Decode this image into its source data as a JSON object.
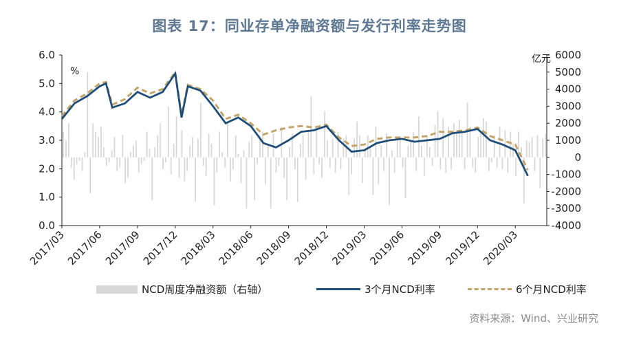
{
  "title": "图表 17：同业存单净融资额与发行利率走势图",
  "source": "资料来源：Wind、兴业研究",
  "chart_data": {
    "type": "line",
    "left_axis": {
      "unit": "%",
      "min": 0,
      "max": 6,
      "ticks": [
        "0.0",
        "1.0",
        "2.0",
        "3.0",
        "4.0",
        "5.0",
        "6.0"
      ]
    },
    "right_axis": {
      "unit": "亿元",
      "min": -4000,
      "max": 6000,
      "ticks": [
        "-4000",
        "-3000",
        "-2000",
        "-1000",
        "0",
        "1000",
        "2000",
        "3000",
        "4000",
        "5000",
        "6000"
      ]
    },
    "x_ticks": [
      "2017/03",
      "2017/06",
      "2017/09",
      "2017/12",
      "2018/03",
      "2018/06",
      "2018/09",
      "2018/12",
      "2019/03",
      "2019/06",
      "2019/09",
      "2019/12",
      "2020/03"
    ],
    "legend": [
      "NCD周度净融资额（右轴）",
      "3个月NCD利率",
      "6个月NCD利率"
    ],
    "colors": {
      "bars": "#d7d7d7",
      "rate3m": "#1f4e79",
      "rate6m": "#c3a56a"
    },
    "rate_3m": [
      [
        "2017/03",
        3.75
      ],
      [
        "2017/04",
        4.3
      ],
      [
        "2017/05",
        4.55
      ],
      [
        "2017/06",
        4.9
      ],
      [
        "2017/06",
        5.0
      ],
      [
        "2017/07",
        4.15
      ],
      [
        "2017/08",
        4.3
      ],
      [
        "2017/09",
        4.7
      ],
      [
        "2017/10",
        4.5
      ],
      [
        "2017/11",
        4.7
      ],
      [
        "2017/12",
        5.35
      ],
      [
        "2017/12",
        3.8
      ],
      [
        "2018/01",
        4.9
      ],
      [
        "2018/02",
        4.75
      ],
      [
        "2018/03",
        4.2
      ],
      [
        "2018/04",
        3.6
      ],
      [
        "2018/05",
        3.8
      ],
      [
        "2018/06",
        3.5
      ],
      [
        "2018/07",
        2.9
      ],
      [
        "2018/08",
        2.75
      ],
      [
        "2018/09",
        3.0
      ],
      [
        "2018/10",
        3.3
      ],
      [
        "2018/11",
        3.35
      ],
      [
        "2018/12",
        3.5
      ],
      [
        "2019/01",
        3.0
      ],
      [
        "2019/02",
        2.6
      ],
      [
        "2019/03",
        2.65
      ],
      [
        "2019/04",
        2.9
      ],
      [
        "2019/05",
        3.0
      ],
      [
        "2019/06",
        3.05
      ],
      [
        "2019/07",
        2.95
      ],
      [
        "2019/08",
        3.0
      ],
      [
        "2019/09",
        3.05
      ],
      [
        "2019/10",
        3.25
      ],
      [
        "2019/11",
        3.3
      ],
      [
        "2019/12",
        3.4
      ],
      [
        "2020/01",
        3.0
      ],
      [
        "2020/02",
        2.85
      ],
      [
        "2020/03",
        2.65
      ],
      [
        "2020/04",
        1.75
      ]
    ],
    "rate_6m": [
      [
        "2017/03",
        3.85
      ],
      [
        "2017/04",
        4.4
      ],
      [
        "2017/05",
        4.65
      ],
      [
        "2017/06",
        5.0
      ],
      [
        "2017/06",
        5.05
      ],
      [
        "2017/07",
        4.25
      ],
      [
        "2017/08",
        4.45
      ],
      [
        "2017/09",
        4.85
      ],
      [
        "2017/10",
        4.65
      ],
      [
        "2017/11",
        4.8
      ],
      [
        "2017/12",
        5.4
      ],
      [
        "2017/12",
        3.9
      ],
      [
        "2018/01",
        4.95
      ],
      [
        "2018/02",
        4.8
      ],
      [
        "2018/03",
        4.4
      ],
      [
        "2018/04",
        3.75
      ],
      [
        "2018/05",
        3.9
      ],
      [
        "2018/06",
        3.6
      ],
      [
        "2018/07",
        3.2
      ],
      [
        "2018/08",
        3.35
      ],
      [
        "2018/09",
        3.45
      ],
      [
        "2018/10",
        3.5
      ],
      [
        "2018/11",
        3.45
      ],
      [
        "2018/12",
        3.55
      ],
      [
        "2019/01",
        3.1
      ],
      [
        "2019/02",
        2.8
      ],
      [
        "2019/03",
        2.85
      ],
      [
        "2019/04",
        3.05
      ],
      [
        "2019/05",
        3.1
      ],
      [
        "2019/06",
        3.1
      ],
      [
        "2019/07",
        3.1
      ],
      [
        "2019/08",
        3.15
      ],
      [
        "2019/09",
        3.3
      ],
      [
        "2019/10",
        3.3
      ],
      [
        "2019/11",
        3.35
      ],
      [
        "2019/12",
        3.45
      ],
      [
        "2020/01",
        3.15
      ],
      [
        "2020/02",
        3.0
      ],
      [
        "2020/03",
        2.85
      ],
      [
        "2020/04",
        1.95
      ]
    ],
    "net_financing_weekly": [
      1500,
      1000,
      2000,
      -600,
      -1300,
      -400,
      -200,
      -800,
      300,
      5000,
      -2100,
      2000,
      1500,
      1200,
      1800,
      600,
      -500,
      -300,
      400,
      1200,
      -800,
      -600,
      1300,
      -1500,
      -1200,
      300,
      700,
      1000,
      -900,
      -400,
      -200,
      1500,
      500,
      -2500,
      600,
      1300,
      2000,
      -700,
      -300,
      3000,
      -1000,
      800,
      2400,
      -1200,
      1600,
      -1400,
      -800,
      700,
      1200,
      -2600,
      1100,
      3200,
      -500,
      -1100,
      1400,
      800,
      -2800,
      -900,
      1500,
      300,
      -600,
      2000,
      -1400,
      -700,
      1300,
      200,
      -1500,
      400,
      -3000,
      900,
      1300,
      -2500,
      -400,
      1100,
      1500,
      -1600,
      700,
      -3000,
      1400,
      -900,
      -500,
      1800,
      -1200,
      -2500,
      600,
      1400,
      -700,
      -2600,
      800,
      1300,
      -1300,
      1500,
      3600,
      -1000,
      1800,
      -400,
      -1200,
      2700,
      1000,
      -600,
      1100,
      -900,
      1500,
      -700,
      1100,
      1300,
      -2200,
      -1000,
      1100,
      2100,
      1300,
      -1500,
      500,
      1300,
      600,
      -2200,
      1800,
      -1600,
      700,
      -800,
      1400,
      -2800,
      400,
      -900,
      1000,
      1200,
      -600,
      -2400,
      700,
      1000,
      1500,
      -800,
      2400,
      700,
      -1100,
      1300,
      600,
      -500,
      1900,
      2700,
      -700,
      2300,
      -900,
      1800,
      -700,
      2000,
      1600,
      2200,
      1400,
      -700,
      3200,
      1800,
      -600,
      -900,
      1200,
      1400,
      2300,
      2100,
      -800,
      -300,
      1300,
      -600,
      1800,
      -700,
      1600,
      -900,
      1500,
      800,
      -1100,
      1500,
      600,
      -2700,
      1000,
      900,
      1200,
      -800,
      1300,
      -1800,
      1100,
      1400
    ]
  }
}
